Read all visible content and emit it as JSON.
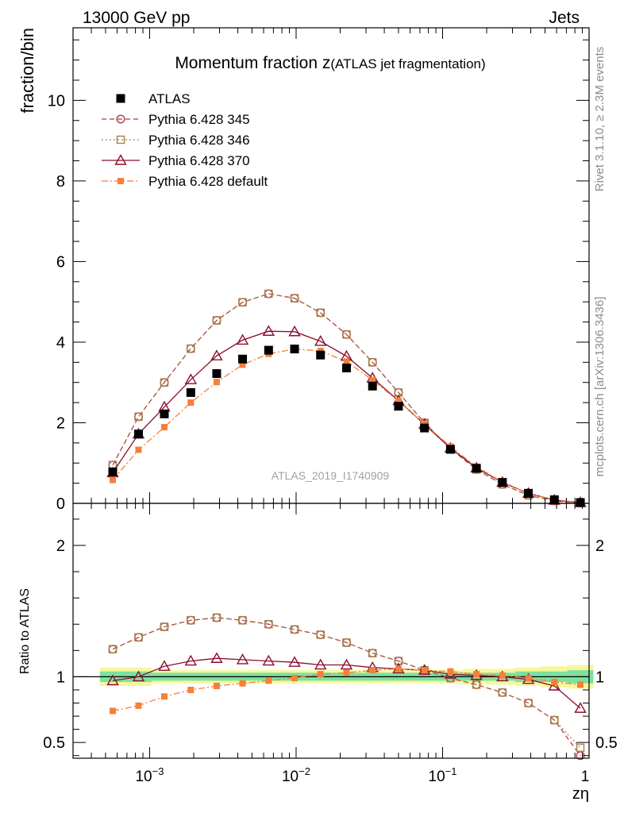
{
  "header": {
    "left": "13000 GeV pp",
    "right": "Jets",
    "title_main": "Momentum fraction z",
    "title_sub": "(ATLAS jet fragmentation)",
    "side_rivet": "Rivet 3.1.10, ≥ 2.3M events",
    "side_mcplots": "mcplots.cern.ch [arXiv:1306.3436]",
    "watermark": "ATLAS_2019_I1740909"
  },
  "chart_data": {
    "type": "scatter",
    "x_scale": "log",
    "xlim": [
      0.0003,
      1.0
    ],
    "xlabel": "zη",
    "x_ticks": [
      {
        "value": 0.001,
        "base": "10",
        "exp": "−3"
      },
      {
        "value": 0.01,
        "base": "10",
        "exp": "−2"
      },
      {
        "value": 0.1,
        "base": "10",
        "exp": "−1"
      },
      {
        "value": 1.0,
        "base": "1",
        "exp": ""
      }
    ],
    "main": {
      "ylabel": "fraction/bin",
      "ylim": [
        0,
        11.8
      ],
      "y_ticks": [
        "0",
        "2",
        "4",
        "6",
        "8",
        "10"
      ]
    },
    "ratio": {
      "ylabel": "Ratio to ATLAS",
      "ylim": [
        0.38,
        2.32
      ],
      "y_ticks": [
        "0.5",
        "1",
        "2"
      ]
    },
    "x": [
      0.00056,
      0.00084,
      0.00126,
      0.00191,
      0.00287,
      0.00431,
      0.00649,
      0.00976,
      0.01468,
      0.02209,
      0.03323,
      0.04999,
      0.07521,
      0.11315,
      0.17024,
      0.25611,
      0.38531,
      0.57969,
      0.8721
    ],
    "series": [
      {
        "name": "ATLAS",
        "color": "#000000",
        "marker": "filled-square",
        "line": "none",
        "values": [
          0.78,
          1.72,
          2.22,
          2.75,
          3.22,
          3.58,
          3.8,
          3.83,
          3.68,
          3.36,
          2.91,
          2.41,
          1.87,
          1.34,
          0.87,
          0.52,
          0.25,
          0.09,
          0.02
        ],
        "ratio": [
          1.0,
          1.0,
          1.0,
          1.0,
          1.0,
          1.0,
          1.0,
          1.0,
          1.0,
          1.0,
          1.0,
          1.0,
          1.0,
          1.0,
          1.0,
          1.0,
          1.0,
          1.0,
          1.0
        ]
      },
      {
        "name": "Pythia 6.428 345",
        "color": "#b03a48",
        "marker": "open-circle",
        "line": "dashed",
        "values": [
          0.95,
          2.15,
          3.0,
          3.84,
          4.54,
          4.99,
          5.2,
          5.09,
          4.73,
          4.19,
          3.5,
          2.75,
          2.0,
          1.36,
          0.84,
          0.47,
          0.2,
          0.06,
          0.008
        ],
        "ratio": [
          1.21,
          1.3,
          1.38,
          1.43,
          1.45,
          1.43,
          1.4,
          1.36,
          1.32,
          1.26,
          1.18,
          1.12,
          1.05,
          0.99,
          0.94,
          0.88,
          0.8,
          0.67,
          0.4
        ]
      },
      {
        "name": "Pythia 6.428 346",
        "color": "#a6804a",
        "marker": "open-square",
        "line": "dotted",
        "values": [
          0.95,
          2.15,
          3.0,
          3.84,
          4.54,
          4.99,
          5.2,
          5.09,
          4.73,
          4.19,
          3.5,
          2.75,
          2.0,
          1.36,
          0.84,
          0.47,
          0.2,
          0.06,
          0.01
        ],
        "ratio": [
          1.21,
          1.3,
          1.38,
          1.43,
          1.45,
          1.43,
          1.4,
          1.36,
          1.32,
          1.26,
          1.18,
          1.12,
          1.05,
          0.99,
          0.94,
          0.88,
          0.8,
          0.67,
          0.46
        ]
      },
      {
        "name": "Pythia 6.428 370",
        "color": "#8b0e2c",
        "marker": "open-triangle",
        "line": "solid",
        "values": [
          0.76,
          1.72,
          2.39,
          3.07,
          3.66,
          4.05,
          4.27,
          4.26,
          4.02,
          3.65,
          3.11,
          2.55,
          1.96,
          1.37,
          0.88,
          0.52,
          0.25,
          0.08,
          0.02
        ],
        "ratio": [
          0.97,
          1.0,
          1.08,
          1.12,
          1.14,
          1.13,
          1.12,
          1.11,
          1.09,
          1.09,
          1.07,
          1.06,
          1.05,
          1.02,
          1.01,
          1.0,
          0.98,
          0.93,
          0.76
        ]
      },
      {
        "name": "Pythia 6.428 default",
        "color": "#f4803a",
        "marker": "filled-square-small",
        "line": "dashdot",
        "values": [
          0.58,
          1.33,
          1.89,
          2.5,
          3.01,
          3.44,
          3.71,
          3.83,
          3.78,
          3.52,
          3.06,
          2.54,
          1.97,
          1.41,
          0.91,
          0.53,
          0.25,
          0.09,
          0.02
        ],
        "ratio": [
          0.74,
          0.78,
          0.85,
          0.9,
          0.93,
          0.95,
          0.97,
          0.99,
          1.02,
          1.03,
          1.05,
          1.06,
          1.05,
          1.04,
          1.02,
          1.01,
          0.99,
          0.96,
          0.94
        ]
      }
    ],
    "band": {
      "inner_color": "#7ee0a0",
      "outer_color": "#f6f79a",
      "inner": [
        [
          0.96,
          1.04
        ],
        [
          0.96,
          1.04
        ],
        [
          0.97,
          1.03
        ],
        [
          0.97,
          1.03
        ],
        [
          0.97,
          1.03
        ],
        [
          0.97,
          1.03
        ],
        [
          0.97,
          1.03
        ],
        [
          0.97,
          1.03
        ],
        [
          0.97,
          1.03
        ],
        [
          0.97,
          1.03
        ],
        [
          0.97,
          1.03
        ],
        [
          0.97,
          1.03
        ],
        [
          0.97,
          1.03
        ],
        [
          0.97,
          1.03
        ],
        [
          0.97,
          1.03
        ],
        [
          0.97,
          1.03
        ],
        [
          0.96,
          1.04
        ],
        [
          0.96,
          1.04
        ],
        [
          0.95,
          1.05
        ]
      ],
      "outer": [
        [
          0.93,
          1.07
        ],
        [
          0.93,
          1.07
        ],
        [
          0.95,
          1.05
        ],
        [
          0.95,
          1.05
        ],
        [
          0.95,
          1.05
        ],
        [
          0.95,
          1.05
        ],
        [
          0.95,
          1.05
        ],
        [
          0.95,
          1.05
        ],
        [
          0.95,
          1.05
        ],
        [
          0.95,
          1.05
        ],
        [
          0.95,
          1.05
        ],
        [
          0.95,
          1.05
        ],
        [
          0.95,
          1.05
        ],
        [
          0.95,
          1.05
        ],
        [
          0.94,
          1.06
        ],
        [
          0.94,
          1.06
        ],
        [
          0.93,
          1.07
        ],
        [
          0.92,
          1.08
        ],
        [
          0.91,
          1.09
        ]
      ]
    }
  }
}
